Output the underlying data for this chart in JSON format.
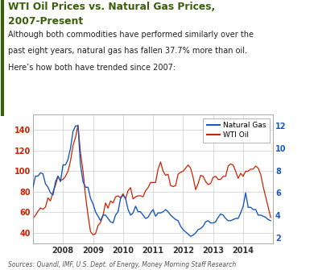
{
  "title_line1": "WTI Oil Prices vs. Natural Gas Prices,",
  "title_line2": "2007-Present",
  "subtitle_lines": [
    "Although both commodities have performed similarly over the",
    "past eight years, natural gas has fallen 37.7% more than oil.",
    "Here’s how both have trended since 2007:"
  ],
  "source": "Sources: Quandl, IMF, U.S. Dept. of Energy, Money Morning Staff Research",
  "title_color": "#3a5f0b",
  "subtitle_color": "#222222",
  "source_color": "#555555",
  "oil_color": "#cc2200",
  "gas_color": "#1a5abf",
  "background_color": "#ffffff",
  "left_ylim": [
    30,
    155
  ],
  "right_ylim": [
    1.5,
    13.0
  ],
  "left_yticks": [
    40,
    60,
    80,
    100,
    120,
    140
  ],
  "right_yticks": [
    2,
    4,
    6,
    8,
    10,
    12
  ],
  "xtick_labels": [
    "2008",
    "2009",
    "2010",
    "2011",
    "2012",
    "2013",
    "2014"
  ],
  "xlim": [
    2007.0,
    2015.0
  ],
  "xtick_positions": [
    2008,
    2009,
    2010,
    2011,
    2012,
    2013,
    2014
  ],
  "legend_labels": [
    "Natural Gas",
    "WTI Oil"
  ],
  "dates": [
    2007.0,
    2007.083,
    2007.167,
    2007.25,
    2007.333,
    2007.417,
    2007.5,
    2007.583,
    2007.667,
    2007.75,
    2007.833,
    2007.917,
    2008.0,
    2008.083,
    2008.167,
    2008.25,
    2008.333,
    2008.417,
    2008.5,
    2008.583,
    2008.667,
    2008.75,
    2008.833,
    2008.917,
    2009.0,
    2009.083,
    2009.167,
    2009.25,
    2009.333,
    2009.417,
    2009.5,
    2009.583,
    2009.667,
    2009.75,
    2009.833,
    2009.917,
    2010.0,
    2010.083,
    2010.167,
    2010.25,
    2010.333,
    2010.417,
    2010.5,
    2010.583,
    2010.667,
    2010.75,
    2010.833,
    2010.917,
    2011.0,
    2011.083,
    2011.167,
    2011.25,
    2011.333,
    2011.417,
    2011.5,
    2011.583,
    2011.667,
    2011.75,
    2011.833,
    2011.917,
    2012.0,
    2012.083,
    2012.167,
    2012.25,
    2012.333,
    2012.417,
    2012.5,
    2012.583,
    2012.667,
    2012.75,
    2012.833,
    2012.917,
    2013.0,
    2013.083,
    2013.167,
    2013.25,
    2013.333,
    2013.417,
    2013.5,
    2013.583,
    2013.667,
    2013.75,
    2013.833,
    2013.917,
    2014.0,
    2014.083,
    2014.167,
    2014.25,
    2014.333,
    2014.417,
    2014.5,
    2014.583,
    2014.667,
    2014.75,
    2014.833,
    2014.917
  ],
  "wti_oil": [
    54,
    57,
    61,
    64,
    63,
    65,
    74,
    71,
    80,
    86,
    95,
    91,
    92,
    95,
    100,
    110,
    125,
    133,
    145,
    118,
    100,
    76,
    57,
    41,
    38,
    39,
    47,
    50,
    57,
    69,
    64,
    71,
    69,
    75,
    76,
    74,
    78,
    73,
    81,
    84,
    73,
    75,
    76,
    76,
    75,
    81,
    84,
    89,
    89,
    89,
    102,
    109,
    100,
    96,
    97,
    86,
    85,
    86,
    97,
    99,
    100,
    103,
    106,
    103,
    94,
    82,
    88,
    96,
    95,
    90,
    87,
    88,
    94,
    95,
    92,
    92,
    95,
    95,
    105,
    107,
    106,
    100,
    93,
    98,
    95,
    100,
    100,
    102,
    102,
    105,
    103,
    97,
    85,
    75,
    65,
    55
  ],
  "nat_gas": [
    6.5,
    7.5,
    7.5,
    7.8,
    7.7,
    6.8,
    6.5,
    6.0,
    5.8,
    7.0,
    7.5,
    7.0,
    8.5,
    8.5,
    9.0,
    10.0,
    11.5,
    12.0,
    12.0,
    8.5,
    7.0,
    6.5,
    6.5,
    5.5,
    5.0,
    4.3,
    3.9,
    3.5,
    4.0,
    4.0,
    3.7,
    3.4,
    3.3,
    4.0,
    4.3,
    5.5,
    5.8,
    5.5,
    4.5,
    4.0,
    4.2,
    4.8,
    4.3,
    4.3,
    4.0,
    3.7,
    3.8,
    4.2,
    4.5,
    3.9,
    4.2,
    4.2,
    4.3,
    4.5,
    4.3,
    4.0,
    3.8,
    3.6,
    3.5,
    3.0,
    2.7,
    2.5,
    2.3,
    2.1,
    2.2,
    2.4,
    2.7,
    2.8,
    3.0,
    3.4,
    3.5,
    3.3,
    3.3,
    3.4,
    3.8,
    4.1,
    4.0,
    3.7,
    3.5,
    3.5,
    3.6,
    3.7,
    3.7,
    4.2,
    4.8,
    6.0,
    4.7,
    4.7,
    4.5,
    4.5,
    4.0,
    4.0,
    3.9,
    3.8,
    3.6,
    3.5
  ]
}
